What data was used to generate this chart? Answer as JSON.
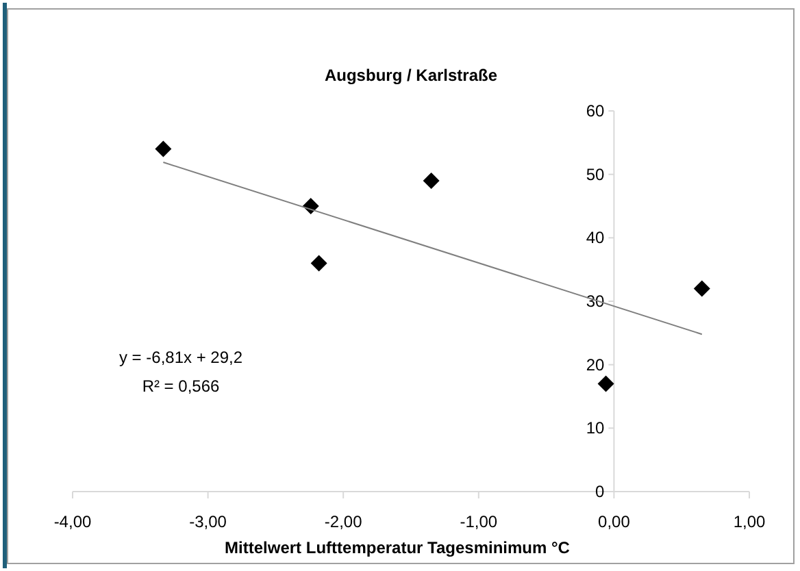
{
  "chart_data": {
    "type": "scatter",
    "title": "Augsburg / Karlstraße",
    "xlabel": "Mittelwert Lufttemperatur Tagesminimum °C",
    "annotations": [
      "y = -6,81x + 29,2",
      "R² = 0,566"
    ],
    "series": [
      {
        "color": "#000000",
        "marker": "diamond",
        "x": [
          -3.33,
          -2.24,
          -2.18,
          -1.35,
          -0.06,
          0.65
        ],
        "values": [
          54,
          45,
          36,
          49,
          17,
          32
        ]
      },
      {
        "type": "line",
        "color": "#7f7f7f",
        "marker": "none",
        "line_style": "solid",
        "x": [
          -3.33,
          0.65
        ],
        "values": [
          51.9,
          24.8
        ]
      }
    ],
    "xlim": [
      -4,
      1
    ],
    "xticks": [
      {
        "value": -4,
        "label": "-4,00"
      },
      {
        "value": -3,
        "label": "-3,00"
      },
      {
        "value": -2,
        "label": "-2,00"
      },
      {
        "value": -1,
        "label": "-1,00"
      },
      {
        "value": 0,
        "label": "0,00"
      },
      {
        "value": 1,
        "label": "1,00"
      }
    ],
    "ylim": [
      0,
      60
    ],
    "yticks": [
      0,
      10,
      20,
      30,
      40,
      50,
      60
    ],
    "grid": false
  }
}
